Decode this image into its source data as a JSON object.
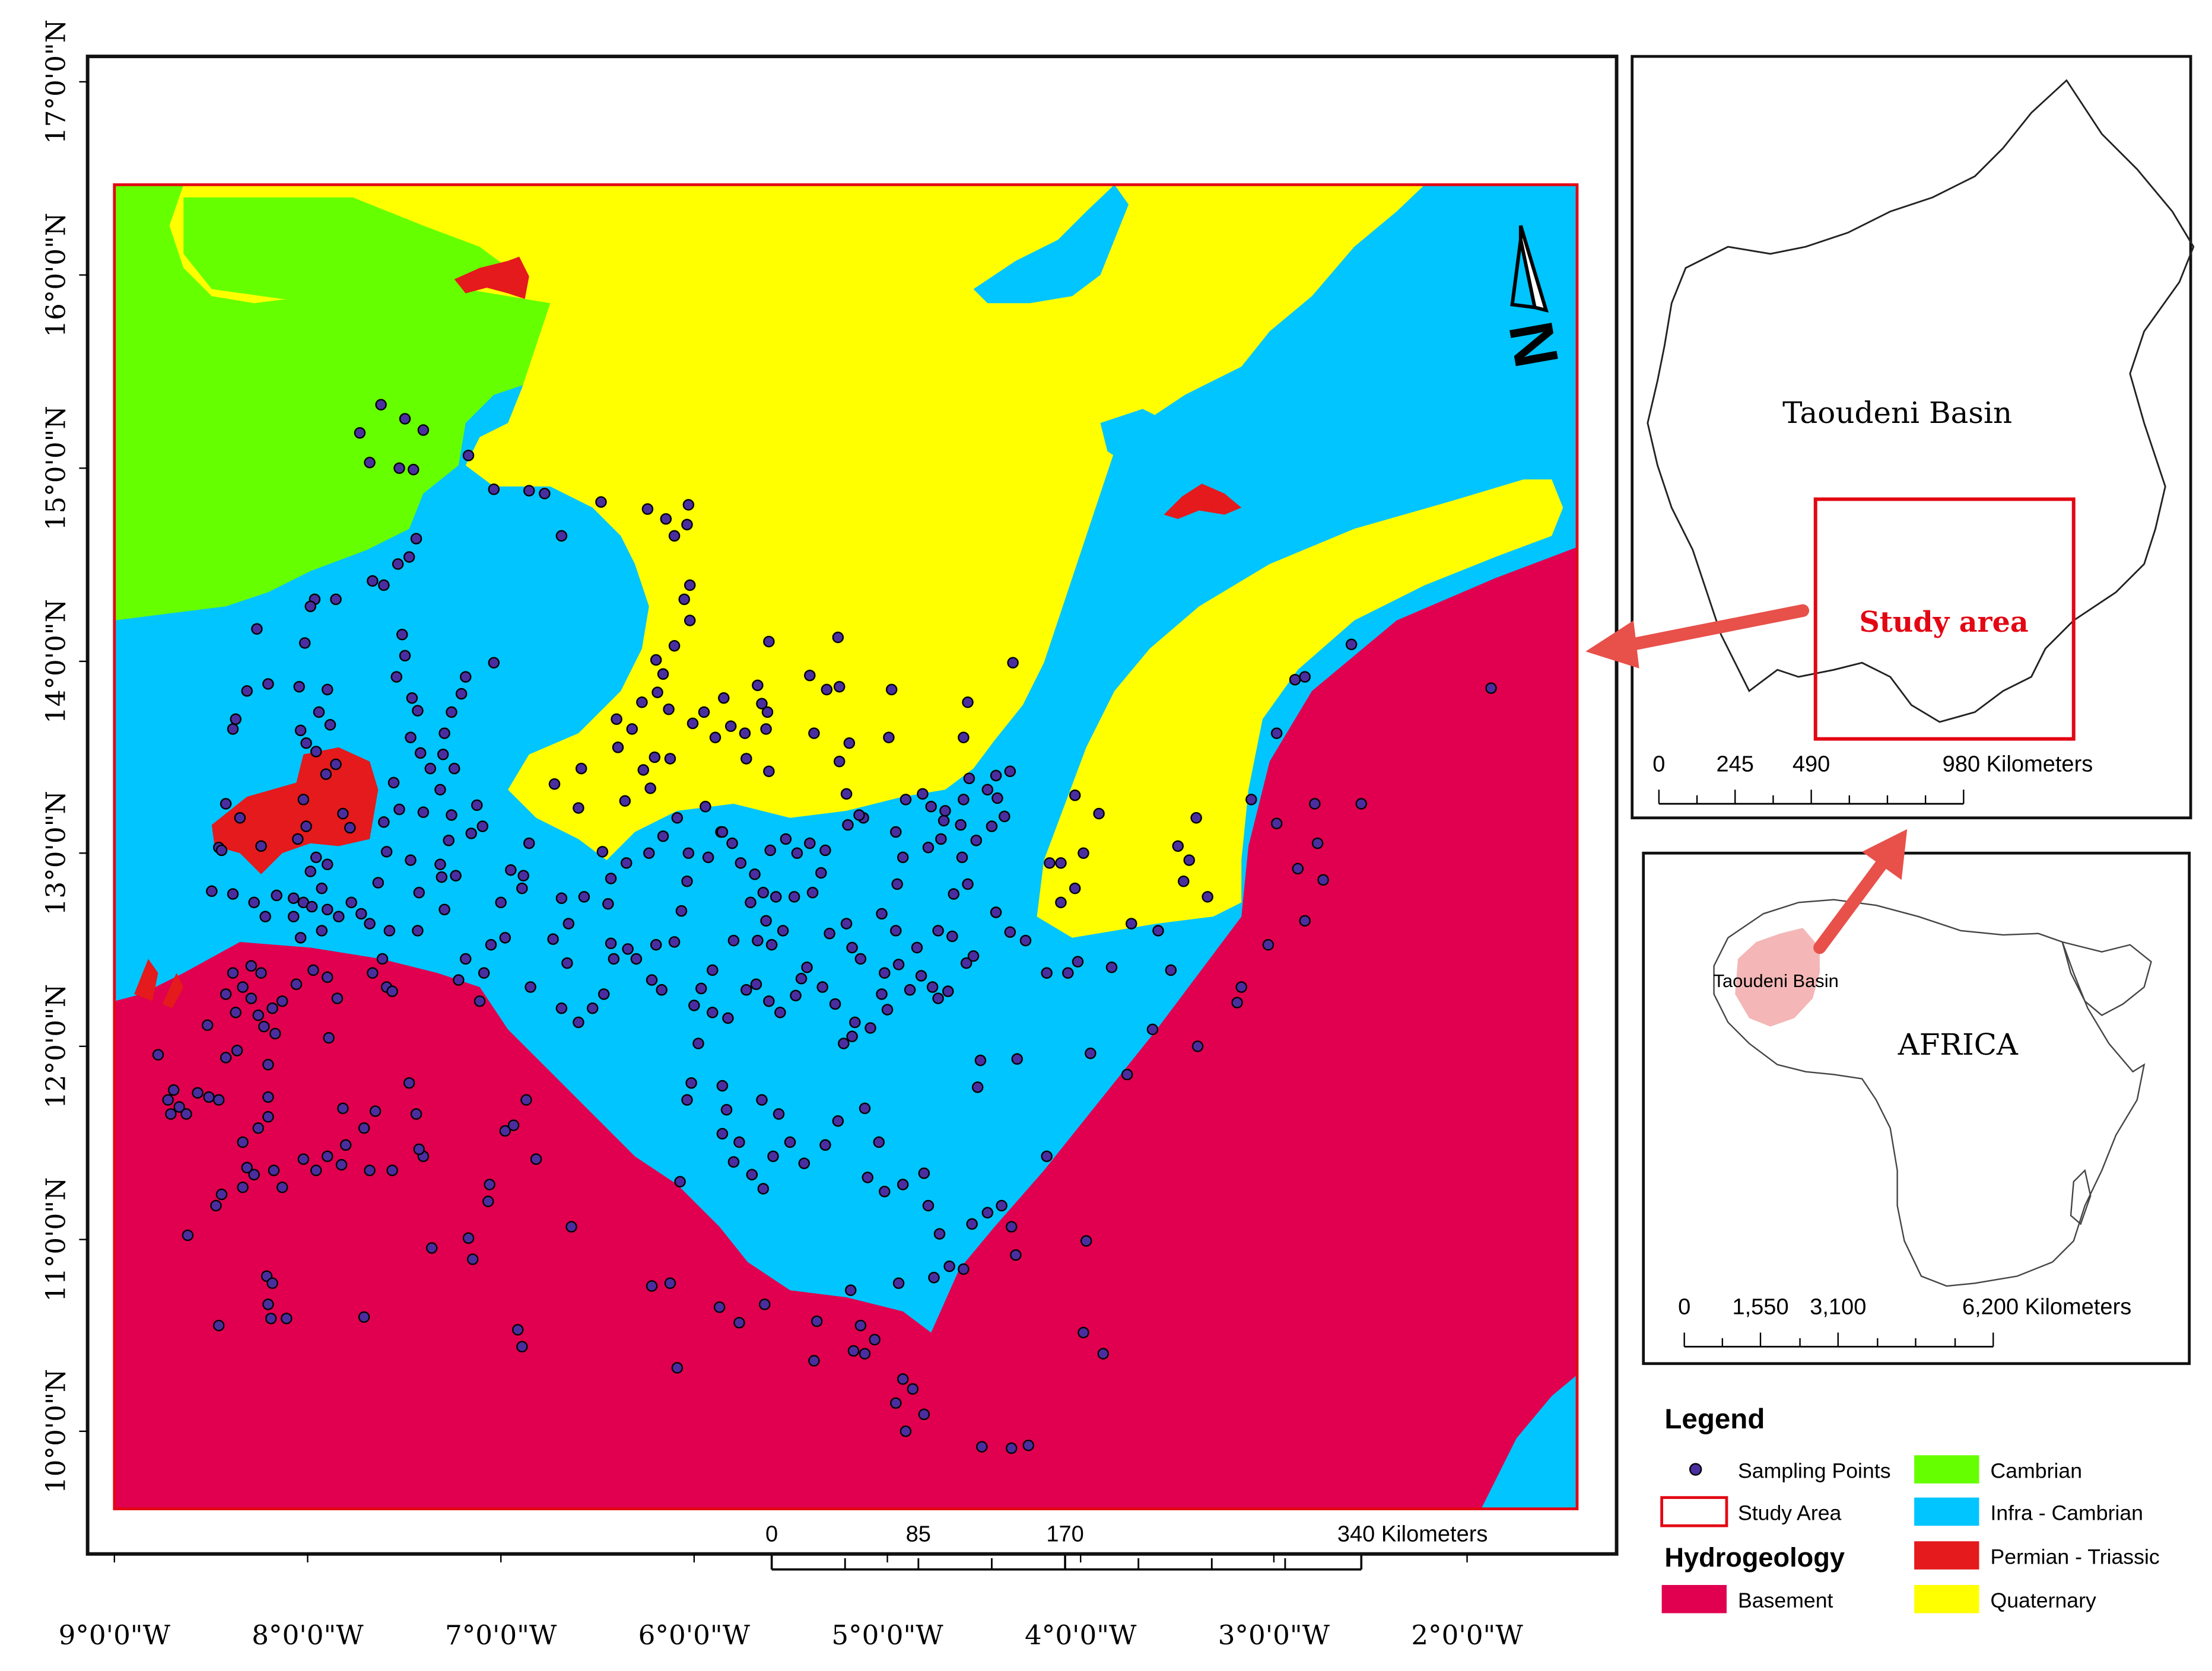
{
  "main_map": {
    "lat_labels": [
      "17°0'0\"N",
      "16°0'0\"N",
      "15°0'0\"N",
      "14°0'0\"N",
      "13°0'0\"N",
      "12°0'0\"N",
      "11°0'0\"N",
      "10°0'0\"N"
    ],
    "lon_labels": [
      "9°0'0\"W",
      "8°0'0\"W",
      "7°0'0\"W",
      "6°0'0\"W",
      "5°0'0\"W",
      "4°0'0\"W",
      "3°0'0\"W",
      "2°0'0\"W"
    ],
    "scale_labels": [
      "0",
      "85",
      "170",
      "340 Kilometers"
    ],
    "north_letter": "N"
  },
  "basin_inset": {
    "title": "Taoudeni Basin",
    "study_label": "Study area",
    "scale_labels": [
      "0",
      "245",
      "490",
      "980 Kilometers"
    ]
  },
  "africa_inset": {
    "continent_label": "AFRICA",
    "basin_label": "Taoudeni Basin",
    "scale_labels": [
      "0",
      "1,550",
      "3,100",
      "6,200 Kilometers"
    ]
  },
  "legend": {
    "title": "Legend",
    "sampling_points": "Sampling Points",
    "study_area": "Study Area",
    "hydro_title": "Hydrogeology",
    "units": [
      {
        "label": "Basement",
        "color": "#e0004f"
      },
      {
        "label": "Cambrian",
        "color": "#66ff00"
      },
      {
        "label": "Infra - Cambrian",
        "color": "#00c5ff"
      },
      {
        "label": "Permian - Triassic",
        "color": "#e41a1c"
      },
      {
        "label": "Quaternary",
        "color": "#ffff00"
      }
    ]
  },
  "colors": {
    "basement": "#e0004f",
    "cambrian": "#66ff00",
    "infra_cambrian": "#00c5ff",
    "permian_triassic": "#e41a1c",
    "quaternary": "#ffff00",
    "points": "#4a2ea0",
    "study_outline": "#e30613",
    "arrow": "#e8504a"
  }
}
